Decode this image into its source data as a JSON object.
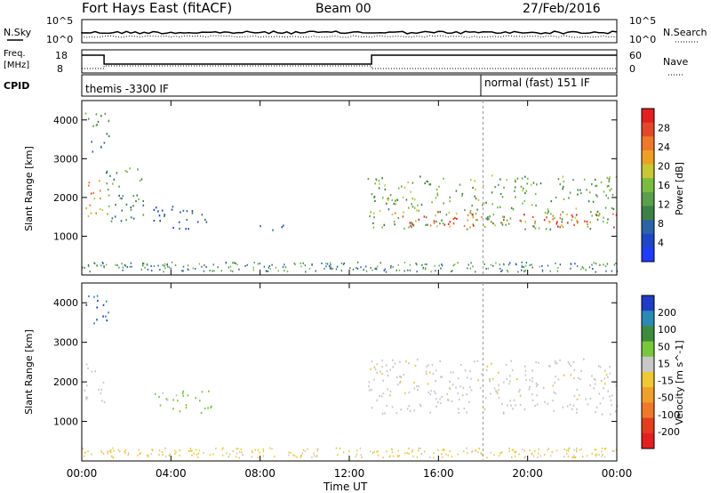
{
  "header": {
    "station": "Fort Hays East (fitACF)",
    "beam": "Beam 00",
    "date": "27/Feb/2016"
  },
  "noise_panel": {
    "left_label": "N.Sky",
    "right_label": "N.Search",
    "left_ticks": [
      "10^5",
      "10^0"
    ],
    "right_ticks": [
      "10^5",
      "10^0"
    ]
  },
  "freq_panel": {
    "left_label_line1": "Freq.",
    "left_label_line2": "[MHz]",
    "right_label": "Nave",
    "left_ticks": [
      "18",
      "8"
    ],
    "right_ticks": [
      "60",
      "0"
    ]
  },
  "cpid_panel": {
    "label": "CPID",
    "mode1": "themis -3300 IF",
    "mode2": "normal (fast) 151 IF"
  },
  "chart_data": [
    {
      "type": "heatmap",
      "title": "Power",
      "ylabel": "Slant Range [km]",
      "ylim": [
        0,
        4500
      ],
      "yticks": [
        "1000",
        "2000",
        "3000",
        "4000"
      ],
      "xticks": [
        "00:00",
        "04:00",
        "08:00",
        "12:00",
        "16:00",
        "20:00",
        "00:00"
      ],
      "colorbar_label": "Power [dB]",
      "colorbar_ticks": [
        "4",
        "8",
        "12",
        "16",
        "20",
        "24",
        "28"
      ],
      "colorbar_colors": [
        "#1e3cff",
        "#1e46c8",
        "#2a64a6",
        "#3c8246",
        "#5aa04a",
        "#78be3c",
        "#c8c832",
        "#f0a020",
        "#f07828",
        "#e64628",
        "#e61e1e"
      ],
      "regions": [
        {
          "t0": 0.1,
          "t1": 1.0,
          "r0": 1500,
          "r1": 2500,
          "power": 22
        },
        {
          "t0": 0.1,
          "t1": 1.2,
          "r0": 3200,
          "r1": 4200,
          "power": 12
        },
        {
          "t0": 1.0,
          "t1": 2.8,
          "r0": 1400,
          "r1": 2800,
          "power": 12
        },
        {
          "t0": 3.2,
          "t1": 5.8,
          "r0": 1200,
          "r1": 1800,
          "power": 6
        },
        {
          "t0": 7.5,
          "t1": 9.2,
          "r0": 1150,
          "r1": 1300,
          "power": 6
        },
        {
          "t0": 12.8,
          "t1": 24.0,
          "r0": 1200,
          "r1": 2600,
          "power": 14
        },
        {
          "t0": 14.0,
          "t1": 24.0,
          "r0": 1250,
          "r1": 1650,
          "power": 26
        }
      ]
    },
    {
      "type": "heatmap",
      "title": "Velocity",
      "ylabel": "Slant Range [km]",
      "ylim": [
        0,
        4500
      ],
      "yticks": [
        "1000",
        "2000",
        "3000",
        "4000"
      ],
      "xticks": [
        "00:00",
        "04:00",
        "08:00",
        "12:00",
        "16:00",
        "20:00",
        "00:00"
      ],
      "xlabel": "Time UT",
      "colorbar_label": "Velocity [m s^-1]",
      "colorbar_ticks": [
        "200",
        "100",
        "50",
        "15",
        "-15",
        "-50",
        "-100",
        "-200"
      ],
      "colorbar_colors": [
        "#1e3cc8",
        "#2a8ab4",
        "#3c8c3c",
        "#78c83c",
        "#c8c8c8",
        "#f0c832",
        "#f0a028",
        "#f07828",
        "#e63c1e",
        "#e61e1e"
      ],
      "regions": [
        {
          "t0": 0.1,
          "t1": 1.0,
          "r0": 1500,
          "r1": 2500,
          "velocity": 0
        },
        {
          "t0": 0.1,
          "t1": 1.2,
          "r0": 3400,
          "r1": 4200,
          "velocity": 150
        },
        {
          "t0": 3.2,
          "t1": 5.8,
          "r0": 1200,
          "r1": 1800,
          "velocity": 40
        },
        {
          "t0": 12.8,
          "t1": 24.0,
          "r0": 1200,
          "r1": 2600,
          "velocity": 0
        }
      ]
    }
  ]
}
